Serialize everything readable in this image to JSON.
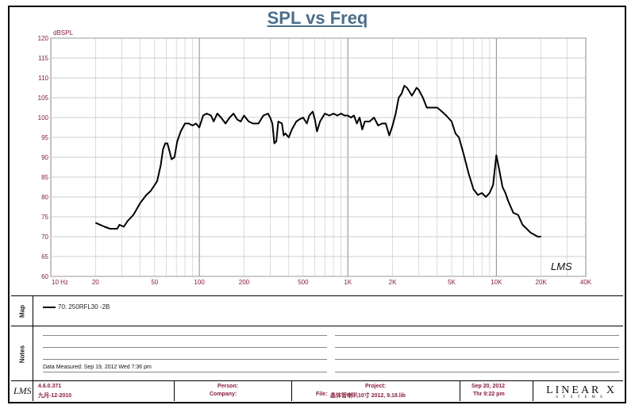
{
  "chart_data": {
    "type": "line",
    "title": "SPL vs Freq",
    "ylabel": "dBSPL",
    "xlabel": "",
    "x_scale": "log",
    "xlim": [
      10,
      40000
    ],
    "ylim": [
      60,
      120
    ],
    "grid": true,
    "y_ticks": [
      60,
      65,
      70,
      75,
      80,
      85,
      90,
      95,
      100,
      105,
      110,
      115,
      120
    ],
    "x_ticks": [
      {
        "value": 10,
        "label": "10 Hz"
      },
      {
        "value": 20,
        "label": "20"
      },
      {
        "value": 50,
        "label": "50"
      },
      {
        "value": 100,
        "label": "100"
      },
      {
        "value": 200,
        "label": "200"
      },
      {
        "value": 500,
        "label": "500"
      },
      {
        "value": 1000,
        "label": "1K"
      },
      {
        "value": 2000,
        "label": "2K"
      },
      {
        "value": 5000,
        "label": "5K"
      },
      {
        "value": 10000,
        "label": "10K"
      },
      {
        "value": 20000,
        "label": "20K"
      },
      {
        "value": 40000,
        "label": "40K"
      }
    ],
    "series": [
      {
        "name": "70: 250RFL30 -2B",
        "color": "#000000",
        "points": [
          [
            20,
            73.5
          ],
          [
            23,
            72.5
          ],
          [
            25,
            72
          ],
          [
            28,
            72
          ],
          [
            29,
            73
          ],
          [
            31,
            72.5
          ],
          [
            33,
            74
          ],
          [
            36,
            75.5
          ],
          [
            40,
            78.5
          ],
          [
            44,
            80.5
          ],
          [
            47,
            81.5
          ],
          [
            50,
            83
          ],
          [
            52,
            84
          ],
          [
            55,
            88
          ],
          [
            57,
            92
          ],
          [
            59,
            93.5
          ],
          [
            61,
            93.5
          ],
          [
            63,
            91.5
          ],
          [
            65,
            89.5
          ],
          [
            68,
            90
          ],
          [
            71,
            94
          ],
          [
            75,
            96.5
          ],
          [
            80,
            98.5
          ],
          [
            85,
            98.5
          ],
          [
            90,
            98
          ],
          [
            95,
            98.5
          ],
          [
            100,
            97.5
          ],
          [
            106,
            100.5
          ],
          [
            112,
            101
          ],
          [
            120,
            100.5
          ],
          [
            125,
            99
          ],
          [
            132,
            101
          ],
          [
            140,
            100
          ],
          [
            150,
            98.5
          ],
          [
            160,
            100
          ],
          [
            170,
            101
          ],
          [
            180,
            99.5
          ],
          [
            190,
            99
          ],
          [
            200,
            100.5
          ],
          [
            215,
            99
          ],
          [
            230,
            98.5
          ],
          [
            250,
            98.5
          ],
          [
            270,
            100.5
          ],
          [
            290,
            101
          ],
          [
            300,
            100
          ],
          [
            310,
            98.5
          ],
          [
            315,
            96
          ],
          [
            320,
            93.5
          ],
          [
            330,
            94
          ],
          [
            340,
            99
          ],
          [
            360,
            98.5
          ],
          [
            370,
            95.5
          ],
          [
            380,
            96
          ],
          [
            400,
            95
          ],
          [
            420,
            97
          ],
          [
            450,
            99
          ],
          [
            470,
            99.5
          ],
          [
            500,
            100
          ],
          [
            530,
            98.5
          ],
          [
            550,
            100.5
          ],
          [
            580,
            101.5
          ],
          [
            600,
            99.5
          ],
          [
            620,
            96.5
          ],
          [
            650,
            99
          ],
          [
            700,
            101
          ],
          [
            750,
            100.5
          ],
          [
            800,
            101
          ],
          [
            850,
            100.5
          ],
          [
            900,
            101
          ],
          [
            950,
            100.5
          ],
          [
            1000,
            100.5
          ],
          [
            1050,
            100
          ],
          [
            1100,
            100.5
          ],
          [
            1150,
            98.5
          ],
          [
            1200,
            100
          ],
          [
            1250,
            97
          ],
          [
            1300,
            99
          ],
          [
            1400,
            99
          ],
          [
            1500,
            100
          ],
          [
            1600,
            98
          ],
          [
            1700,
            98.5
          ],
          [
            1800,
            98.5
          ],
          [
            1900,
            95.5
          ],
          [
            2000,
            98
          ],
          [
            2100,
            101
          ],
          [
            2200,
            105
          ],
          [
            2300,
            106
          ],
          [
            2400,
            108
          ],
          [
            2500,
            107.5
          ],
          [
            2600,
            106.5
          ],
          [
            2700,
            105.5
          ],
          [
            2800,
            106.5
          ],
          [
            2900,
            107.5
          ],
          [
            3000,
            107
          ],
          [
            3200,
            105
          ],
          [
            3400,
            102.5
          ],
          [
            3700,
            102.5
          ],
          [
            4000,
            102.5
          ],
          [
            4300,
            101.5
          ],
          [
            4600,
            100.5
          ],
          [
            5000,
            99
          ],
          [
            5300,
            96
          ],
          [
            5600,
            95
          ],
          [
            6000,
            91
          ],
          [
            6500,
            86
          ],
          [
            7000,
            82
          ],
          [
            7500,
            80.5
          ],
          [
            8000,
            81
          ],
          [
            8500,
            80
          ],
          [
            9000,
            81
          ],
          [
            9500,
            83
          ],
          [
            10000,
            90.5
          ],
          [
            10500,
            86.5
          ],
          [
            11000,
            82.5
          ],
          [
            11500,
            81
          ],
          [
            12000,
            79
          ],
          [
            13000,
            76
          ],
          [
            14000,
            75.5
          ],
          [
            15000,
            73
          ],
          [
            16000,
            72
          ],
          [
            17000,
            71
          ],
          [
            18000,
            70.5
          ],
          [
            19000,
            70
          ],
          [
            20000,
            70
          ]
        ]
      }
    ],
    "legend": "bottom-left"
  },
  "watermark": "LMS",
  "sections": {
    "map_label": "Map",
    "notes_label": "Notes"
  },
  "data_measured": "Data Measured: Sep 19, 2012  Wed  7:36 pm",
  "footer": {
    "logo": "LMS",
    "version": "4.6.0.371",
    "version_date": "九月-12-2010",
    "person_label": "Person:",
    "company_label": "Company:",
    "project_label": "Project:",
    "file_label": "File:",
    "file_name": "晶体管喇叭10寸 2012, 9.18.lib",
    "date": "Sep 20, 2012",
    "time": "Thr  9:22 pm",
    "brand": "LINEAR X",
    "brand_sub": "SYSTEMS"
  }
}
